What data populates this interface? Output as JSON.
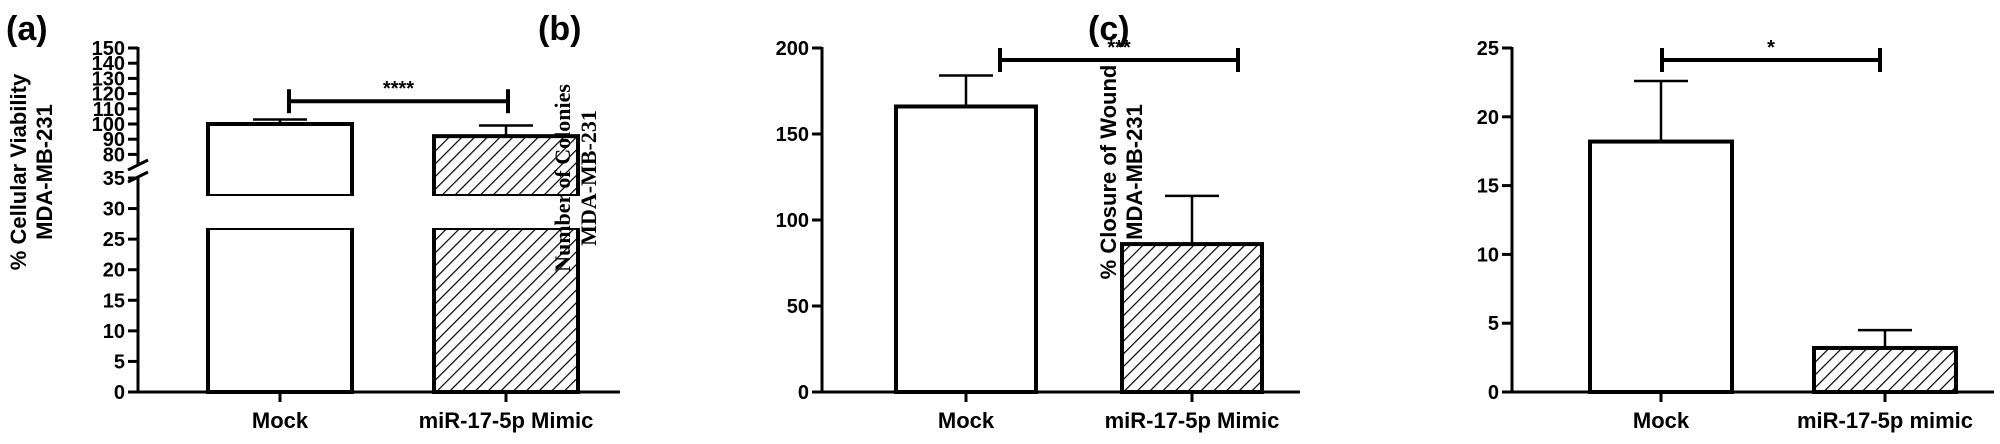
{
  "colors": {
    "ink": "#000000",
    "background": "#ffffff"
  },
  "chart_data": [
    {
      "type": "bar",
      "panel_label": "(a)",
      "ylabel_line1": "% Cellular Viability",
      "ylabel_line2": "MDA-MB-231",
      "categories": [
        "Mock",
        "miR-17-5p Mimic"
      ],
      "values": [
        100,
        92
      ],
      "errors": [
        3,
        7
      ],
      "fills": [
        "white",
        "hatched"
      ],
      "significance": "****",
      "axis_break": {
        "lower": [
          0,
          35
        ],
        "upper": [
          75,
          150
        ]
      },
      "yticks_lower": [
        "0",
        "5",
        "10",
        "15",
        "20",
        "25",
        "30",
        "35"
      ],
      "yticks_upper": [
        "80",
        "90",
        "100",
        "110",
        "120",
        "130",
        "140",
        "150"
      ],
      "grid": false,
      "legend": "none"
    },
    {
      "type": "bar",
      "panel_label": "(b)",
      "ylabel_line1": "Number of Colonies",
      "ylabel_line2": "MDA-MB-231",
      "categories": [
        "Mock",
        "miR-17-5p Mimic"
      ],
      "values": [
        166,
        86
      ],
      "errors": [
        18,
        28
      ],
      "fills": [
        "white",
        "hatched"
      ],
      "significance": "***",
      "ylim": [
        0,
        200
      ],
      "yticks": [
        "0",
        "50",
        "100",
        "150",
        "200"
      ],
      "grid": false,
      "legend": "none"
    },
    {
      "type": "bar",
      "panel_label": "(c)",
      "ylabel_line1": "% Closure of Wound",
      "ylabel_line2": "MDA-MB-231",
      "categories": [
        "Mock",
        "miR-17-5p mimic"
      ],
      "values": [
        18.2,
        3.2
      ],
      "errors": [
        4.4,
        1.3
      ],
      "fills": [
        "white",
        "hatched"
      ],
      "significance": "*",
      "ylim": [
        0,
        25
      ],
      "yticks": [
        "0",
        "5",
        "10",
        "15",
        "20",
        "25"
      ],
      "grid": false,
      "legend": "none"
    }
  ]
}
